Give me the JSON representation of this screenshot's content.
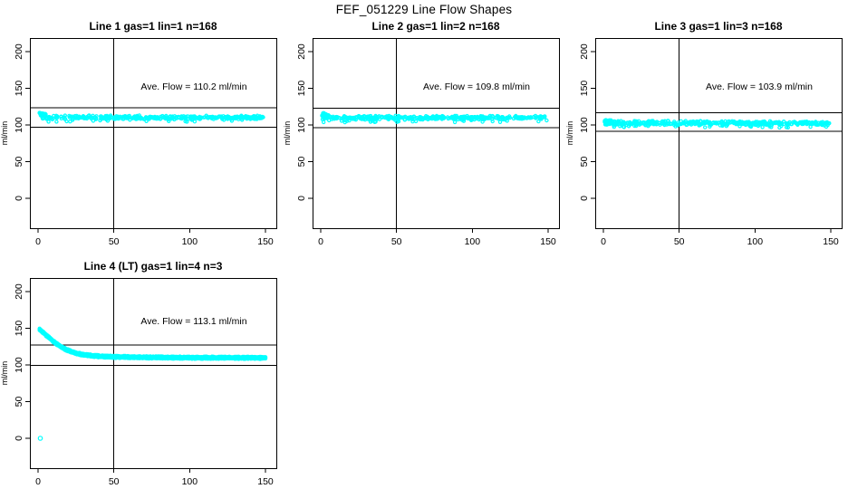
{
  "title": "FEF_051229  Line Flow Shapes",
  "axes": {
    "x_ticks": [
      0,
      50,
      100,
      150
    ],
    "y_ticks": [
      0,
      50,
      100,
      150,
      200
    ],
    "ylabel": "ml/min",
    "xlabel": "",
    "xlim": [
      -5,
      157
    ],
    "ylim": [
      -40,
      218
    ],
    "grid": false,
    "legend": "none"
  },
  "marker": {
    "shape": "open-circle",
    "color": "#00FFFF"
  },
  "line_color": "#000000",
  "chart_data": [
    {
      "type": "scatter",
      "title": "Line 1 gas=1 lin=1 n=168",
      "n": 168,
      "annotation": "Ave. Flow =  110.2  ml/min",
      "ave_flow": 110.2,
      "ref_lines": [
        123.5,
        97.0
      ],
      "vline_x": 50,
      "band_top": [
        [
          1,
          117.5
        ],
        [
          4,
          115.5
        ],
        [
          8,
          114.0
        ],
        [
          15,
          113.2
        ],
        [
          150,
          112.8
        ]
      ],
      "band_bottom": [
        [
          1,
          108.0
        ],
        [
          6,
          107.0
        ],
        [
          150,
          107.3
        ]
      ],
      "start_cluster": true,
      "stragglers_below": 3.5,
      "outliers": []
    },
    {
      "type": "scatter",
      "title": "Line 2 gas=1 lin=2 n=168",
      "n": 168,
      "annotation": "Ave. Flow =  109.8  ml/min",
      "ave_flow": 109.8,
      "ref_lines": [
        123.0,
        96.5
      ],
      "vline_x": 50,
      "band_top": [
        [
          1,
          117.0
        ],
        [
          4,
          115.0
        ],
        [
          8,
          113.5
        ],
        [
          15,
          113.0
        ],
        [
          150,
          112.8
        ]
      ],
      "band_bottom": [
        [
          1,
          106.5
        ],
        [
          150,
          107.0
        ]
      ],
      "start_cluster": true,
      "stragglers_below": 3.0,
      "outliers": []
    },
    {
      "type": "scatter",
      "title": "Line 3 gas=1 lin=3 n=168",
      "n": 168,
      "annotation": "Ave. Flow =  103.9  ml/min",
      "ave_flow": 103.9,
      "ref_lines": [
        116.5,
        91.5
      ],
      "vline_x": 50,
      "band_top": [
        [
          1,
          107.5
        ],
        [
          5,
          106.5
        ],
        [
          150,
          105.3
        ]
      ],
      "band_bottom": [
        [
          1,
          96.5
        ],
        [
          8,
          98.5
        ],
        [
          150,
          99.0
        ]
      ],
      "start_cluster": true,
      "stragglers_below": 2.5,
      "outliers": []
    },
    {
      "type": "scatter",
      "title": "Line 4 (LT) gas=1 lin=4 n=3",
      "n": 3,
      "annotation": "Ave. Flow =  113.1  ml/min",
      "ave_flow": 113.1,
      "ref_lines": [
        127.0,
        99.5
      ],
      "vline_x": 50,
      "curve_center": [
        [
          1,
          148.5
        ],
        [
          4,
          143.0
        ],
        [
          8,
          136.0
        ],
        [
          12,
          129.0
        ],
        [
          16,
          123.5
        ],
        [
          20,
          119.5
        ],
        [
          25,
          116.0
        ],
        [
          30,
          113.8
        ],
        [
          40,
          111.8
        ],
        [
          50,
          111.0
        ],
        [
          70,
          110.3
        ],
        [
          100,
          109.9
        ],
        [
          150,
          109.6
        ]
      ],
      "curve_offsets": [
        -1.2,
        0,
        1.2
      ],
      "outliers": [
        [
          1.5,
          0
        ]
      ]
    }
  ]
}
